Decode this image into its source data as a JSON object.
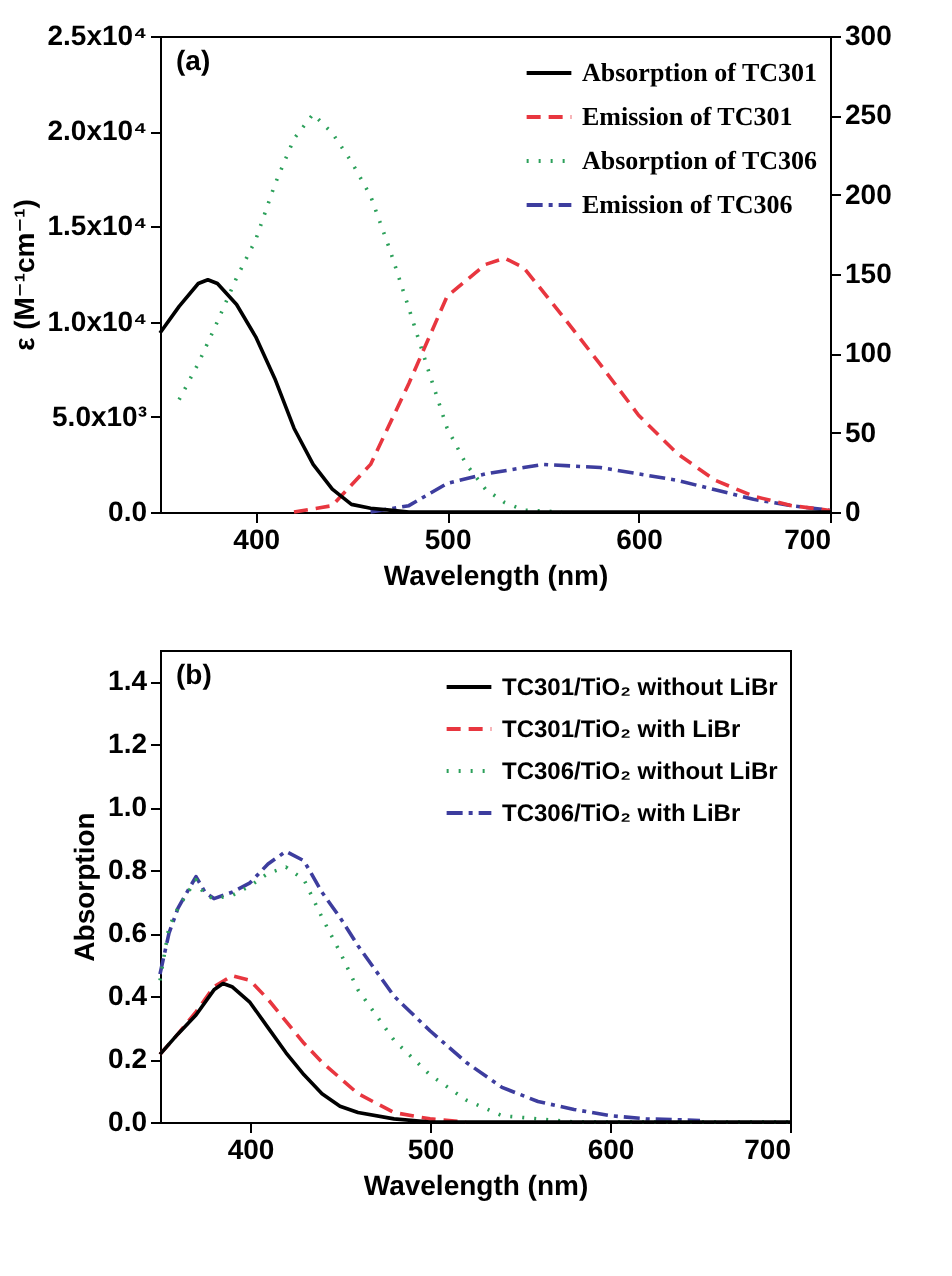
{
  "chart_data": [
    {
      "type": "line",
      "xlabel": "Wavelength (nm)",
      "ylabel": "ε (M⁻¹cm⁻¹)",
      "annotations": [
        "(a)"
      ],
      "legend": "top right",
      "grid": false,
      "marker": "none",
      "xlim": [
        350,
        700
      ],
      "xticks": [
        400,
        500,
        600,
        700
      ],
      "ylim": [
        0,
        25000
      ],
      "yticks": [
        {
          "value": 0,
          "label": "0.0"
        },
        {
          "value": 5000,
          "label": "5.0x10³"
        },
        {
          "value": 10000,
          "label": "1.0x10⁴"
        },
        {
          "value": 15000,
          "label": "1.5x10⁴"
        },
        {
          "value": 20000,
          "label": "2.0x10⁴"
        },
        {
          "value": 25000,
          "label": "2.5x10⁴"
        }
      ],
      "y2lim": [
        0,
        300
      ],
      "y2ticks": [
        0,
        50,
        100,
        150,
        200,
        250,
        300
      ],
      "series": [
        {
          "name": "Absorption of TC301",
          "color": "#000000",
          "line_style": "solid",
          "x": [
            350,
            360,
            370,
            375,
            380,
            390,
            400,
            410,
            420,
            430,
            440,
            450,
            460,
            470,
            480,
            500,
            550,
            600,
            650,
            700
          ],
          "values": [
            9400,
            10800,
            12000,
            12200,
            12000,
            10900,
            9200,
            7000,
            4400,
            2500,
            1200,
            400,
            200,
            100,
            0,
            0,
            0,
            0,
            0,
            0
          ]
        },
        {
          "name": "Emission of TC301",
          "color": "#e8363f",
          "line_style": "dashed",
          "axis": "y2",
          "x": [
            420,
            440,
            460,
            480,
            500,
            520,
            530,
            540,
            560,
            580,
            600,
            620,
            640,
            660,
            680,
            700
          ],
          "values": [
            0,
            4,
            30,
            81,
            136,
            156,
            160,
            154,
            124,
            93,
            61,
            37,
            20,
            10,
            4,
            1
          ]
        },
        {
          "name": "Absorption of TC306",
          "color": "#2ca05a",
          "line_style": "dotted",
          "x": [
            360,
            370,
            380,
            390,
            400,
            410,
            420,
            430,
            440,
            450,
            460,
            470,
            480,
            490,
            500,
            510,
            520,
            530,
            540,
            560
          ],
          "values": [
            5900,
            7800,
            10000,
            12300,
            14300,
            17200,
            19600,
            20900,
            19900,
            18400,
            16600,
            13800,
            10700,
            7500,
            4400,
            2500,
            1200,
            500,
            100,
            0
          ]
        },
        {
          "name": "Emission of TC306",
          "color": "#3d3d9e",
          "line_style": "dashdot",
          "axis": "y2",
          "x": [
            460,
            480,
            500,
            520,
            540,
            550,
            580,
            600,
            620,
            640,
            660,
            680,
            700
          ],
          "values": [
            0,
            4,
            18,
            24,
            28,
            30,
            28,
            24,
            20,
            14,
            8,
            4,
            1
          ]
        }
      ]
    },
    {
      "type": "line",
      "xlabel": "Wavelength (nm)",
      "ylabel": "Absorption",
      "annotations": [
        "(b)"
      ],
      "legend": "top right",
      "grid": false,
      "marker": "none",
      "xlim": [
        350,
        700
      ],
      "xticks": [
        400,
        500,
        600,
        700
      ],
      "ylim": [
        0,
        1.5
      ],
      "yticks": [
        {
          "value": 0,
          "label": "0.0"
        },
        {
          "value": 0.2,
          "label": "0.2"
        },
        {
          "value": 0.4,
          "label": "0.4"
        },
        {
          "value": 0.6,
          "label": "0.6"
        },
        {
          "value": 0.8,
          "label": "0.8"
        },
        {
          "value": 1,
          "label": "1.0"
        },
        {
          "value": 1.2,
          "label": "1.2"
        },
        {
          "value": 1.4,
          "label": "1.4"
        }
      ],
      "series": [
        {
          "name": "TC301/TiO₂ without LiBr",
          "color": "#000000",
          "line_style": "solid",
          "x": [
            350,
            360,
            370,
            380,
            385,
            390,
            400,
            410,
            420,
            430,
            440,
            450,
            460,
            480,
            500,
            550,
            600,
            650,
            700
          ],
          "values": [
            0.215,
            0.28,
            0.34,
            0.42,
            0.44,
            0.43,
            0.38,
            0.3,
            0.22,
            0.15,
            0.09,
            0.05,
            0.03,
            0.01,
            0,
            0,
            0,
            0,
            0
          ]
        },
        {
          "name": "TC301/TiO₂ with LiBr",
          "color": "#e8363f",
          "line_style": "dashed",
          "x": [
            350,
            360,
            370,
            380,
            390,
            400,
            410,
            420,
            430,
            440,
            460,
            480,
            500,
            520
          ],
          "values": [
            0.215,
            0.28,
            0.35,
            0.43,
            0.465,
            0.45,
            0.39,
            0.32,
            0.25,
            0.19,
            0.09,
            0.03,
            0.01,
            0
          ]
        },
        {
          "name": "TC306/TiO₂ without LiBr",
          "color": "#2ca05a",
          "line_style": "dotted",
          "x": [
            350,
            355,
            360,
            370,
            375,
            380,
            390,
            400,
            410,
            420,
            430,
            440,
            450,
            460,
            480,
            500,
            520,
            540,
            560,
            580,
            650,
            700
          ],
          "values": [
            0.45,
            0.62,
            0.68,
            0.77,
            0.72,
            0.71,
            0.72,
            0.75,
            0.79,
            0.81,
            0.77,
            0.65,
            0.54,
            0.42,
            0.26,
            0.15,
            0.07,
            0.02,
            0.01,
            0,
            0,
            0
          ]
        },
        {
          "name": "TC306/TiO₂ with LiBr",
          "color": "#3d3d9e",
          "line_style": "dashdot",
          "x": [
            350,
            355,
            360,
            370,
            375,
            380,
            390,
            400,
            410,
            420,
            430,
            440,
            450,
            460,
            480,
            500,
            520,
            540,
            560,
            580,
            600,
            620,
            650
          ],
          "values": [
            0.47,
            0.6,
            0.68,
            0.78,
            0.73,
            0.71,
            0.73,
            0.76,
            0.82,
            0.86,
            0.83,
            0.73,
            0.65,
            0.56,
            0.4,
            0.29,
            0.19,
            0.11,
            0.065,
            0.04,
            0.02,
            0.01,
            0.005
          ]
        }
      ]
    }
  ]
}
